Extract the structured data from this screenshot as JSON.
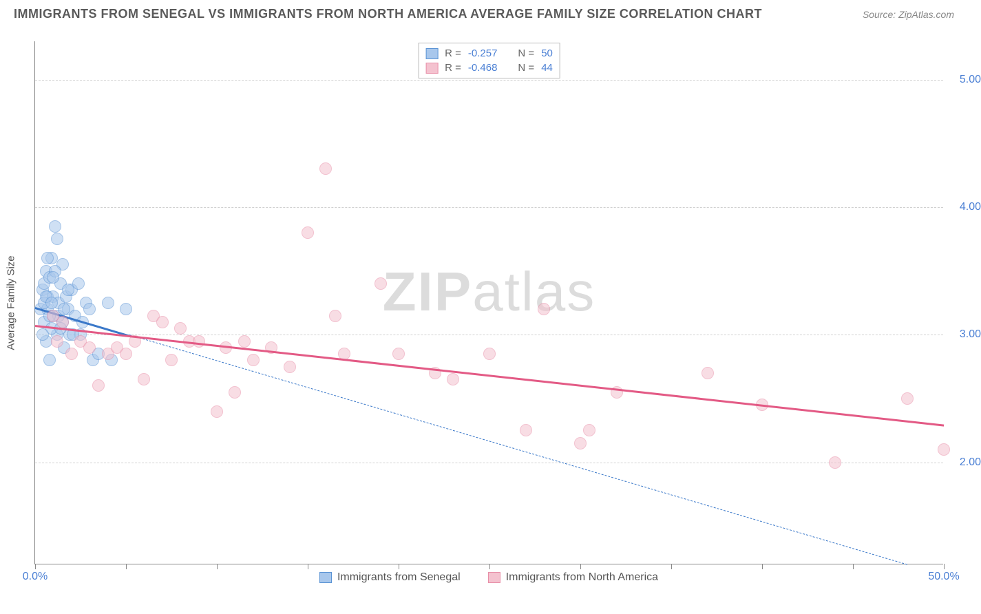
{
  "header": {
    "title": "IMMIGRANTS FROM SENEGAL VS IMMIGRANTS FROM NORTH AMERICA AVERAGE FAMILY SIZE CORRELATION CHART",
    "source_prefix": "Source: ",
    "source": "ZipAtlas.com"
  },
  "chart": {
    "type": "scatter",
    "watermark": "ZIPatlas",
    "ylabel": "Average Family Size",
    "background_color": "#ffffff",
    "grid_color": "#d0d0d0",
    "axis_color": "#888888",
    "xlim": [
      0,
      50
    ],
    "ylim": [
      1.2,
      5.3
    ],
    "yticks": [
      2.0,
      3.0,
      4.0,
      5.0
    ],
    "ytick_labels": [
      "2.00",
      "3.00",
      "4.00",
      "5.00"
    ],
    "xticks": [
      0,
      5,
      10,
      15,
      20,
      25,
      30,
      35,
      40,
      45,
      50
    ],
    "xtick_labels_shown": {
      "0": "0.0%",
      "50": "50.0%"
    },
    "marker_radius": 9,
    "marker_opacity": 0.55,
    "series": [
      {
        "id": "senegal",
        "label": "Immigrants from Senegal",
        "color_fill": "#a8c7ec",
        "color_stroke": "#5a93d4",
        "trend_color": "#3a78c9",
        "R": "-0.257",
        "N": "50",
        "trend": {
          "x1": 0,
          "y1": 3.22,
          "x2": 5.2,
          "y2": 3.0
        },
        "trend_ext": {
          "x1": 5.2,
          "y1": 3.0,
          "x2": 48,
          "y2": 1.2
        },
        "points": [
          [
            0.3,
            3.2
          ],
          [
            0.4,
            3.35
          ],
          [
            0.5,
            3.1
          ],
          [
            0.5,
            3.4
          ],
          [
            0.6,
            3.5
          ],
          [
            0.7,
            3.2
          ],
          [
            0.7,
            3.3
          ],
          [
            0.8,
            3.45
          ],
          [
            0.8,
            2.8
          ],
          [
            0.9,
            3.6
          ],
          [
            1.0,
            3.15
          ],
          [
            1.0,
            3.3
          ],
          [
            1.1,
            3.85
          ],
          [
            1.2,
            3.0
          ],
          [
            1.2,
            3.75
          ],
          [
            1.3,
            3.25
          ],
          [
            1.4,
            3.4
          ],
          [
            1.5,
            3.1
          ],
          [
            1.5,
            3.55
          ],
          [
            1.6,
            2.9
          ],
          [
            1.7,
            3.3
          ],
          [
            1.8,
            3.2
          ],
          [
            1.9,
            3.0
          ],
          [
            2.0,
            3.35
          ],
          [
            2.2,
            3.15
          ],
          [
            2.4,
            3.4
          ],
          [
            2.5,
            3.0
          ],
          [
            2.8,
            3.25
          ],
          [
            3.0,
            3.2
          ],
          [
            3.2,
            2.8
          ],
          [
            3.5,
            2.85
          ],
          [
            4.0,
            3.25
          ],
          [
            4.2,
            2.8
          ],
          [
            5.0,
            3.2
          ],
          [
            0.6,
            2.95
          ],
          [
            0.9,
            3.05
          ],
          [
            1.1,
            3.5
          ],
          [
            1.3,
            3.15
          ],
          [
            0.4,
            3.0
          ],
          [
            0.5,
            3.25
          ],
          [
            0.7,
            3.6
          ],
          [
            0.8,
            3.15
          ],
          [
            1.0,
            3.45
          ],
          [
            1.4,
            3.05
          ],
          [
            1.6,
            3.2
          ],
          [
            1.8,
            3.35
          ],
          [
            2.1,
            3.0
          ],
          [
            2.6,
            3.1
          ],
          [
            0.6,
            3.3
          ],
          [
            0.9,
            3.25
          ]
        ]
      },
      {
        "id": "north_america",
        "label": "Immigrants from North America",
        "color_fill": "#f4c2cf",
        "color_stroke": "#e88fa8",
        "trend_color": "#e35a85",
        "R": "-0.468",
        "N": "44",
        "trend": {
          "x1": 0,
          "y1": 3.08,
          "x2": 50,
          "y2": 2.3
        },
        "points": [
          [
            1.0,
            3.15
          ],
          [
            1.2,
            2.95
          ],
          [
            1.5,
            3.1
          ],
          [
            2.0,
            2.85
          ],
          [
            2.5,
            2.95
          ],
          [
            3.0,
            2.9
          ],
          [
            3.5,
            2.6
          ],
          [
            4.0,
            2.85
          ],
          [
            4.5,
            2.9
          ],
          [
            5.0,
            2.85
          ],
          [
            5.5,
            2.95
          ],
          [
            6.0,
            2.65
          ],
          [
            6.5,
            3.15
          ],
          [
            7.0,
            3.1
          ],
          [
            7.5,
            2.8
          ],
          [
            8.0,
            3.05
          ],
          [
            8.5,
            2.95
          ],
          [
            9.0,
            2.95
          ],
          [
            10.0,
            2.4
          ],
          [
            10.5,
            2.9
          ],
          [
            11.0,
            2.55
          ],
          [
            11.5,
            2.95
          ],
          [
            12.0,
            2.8
          ],
          [
            13.0,
            2.9
          ],
          [
            14.0,
            2.75
          ],
          [
            15.0,
            3.8
          ],
          [
            16.0,
            4.3
          ],
          [
            16.5,
            3.15
          ],
          [
            17.0,
            2.85
          ],
          [
            19.0,
            3.4
          ],
          [
            20.0,
            2.85
          ],
          [
            22.0,
            2.7
          ],
          [
            23.0,
            2.65
          ],
          [
            25.0,
            2.85
          ],
          [
            27.0,
            2.25
          ],
          [
            28.0,
            3.2
          ],
          [
            30.0,
            2.15
          ],
          [
            30.5,
            2.25
          ],
          [
            32.0,
            2.55
          ],
          [
            37.0,
            2.7
          ],
          [
            40.0,
            2.45
          ],
          [
            44.0,
            2.0
          ],
          [
            48.0,
            2.5
          ],
          [
            50.0,
            2.1
          ]
        ]
      }
    ],
    "stats_box": {
      "r_label": "R =",
      "n_label": "N ="
    }
  }
}
